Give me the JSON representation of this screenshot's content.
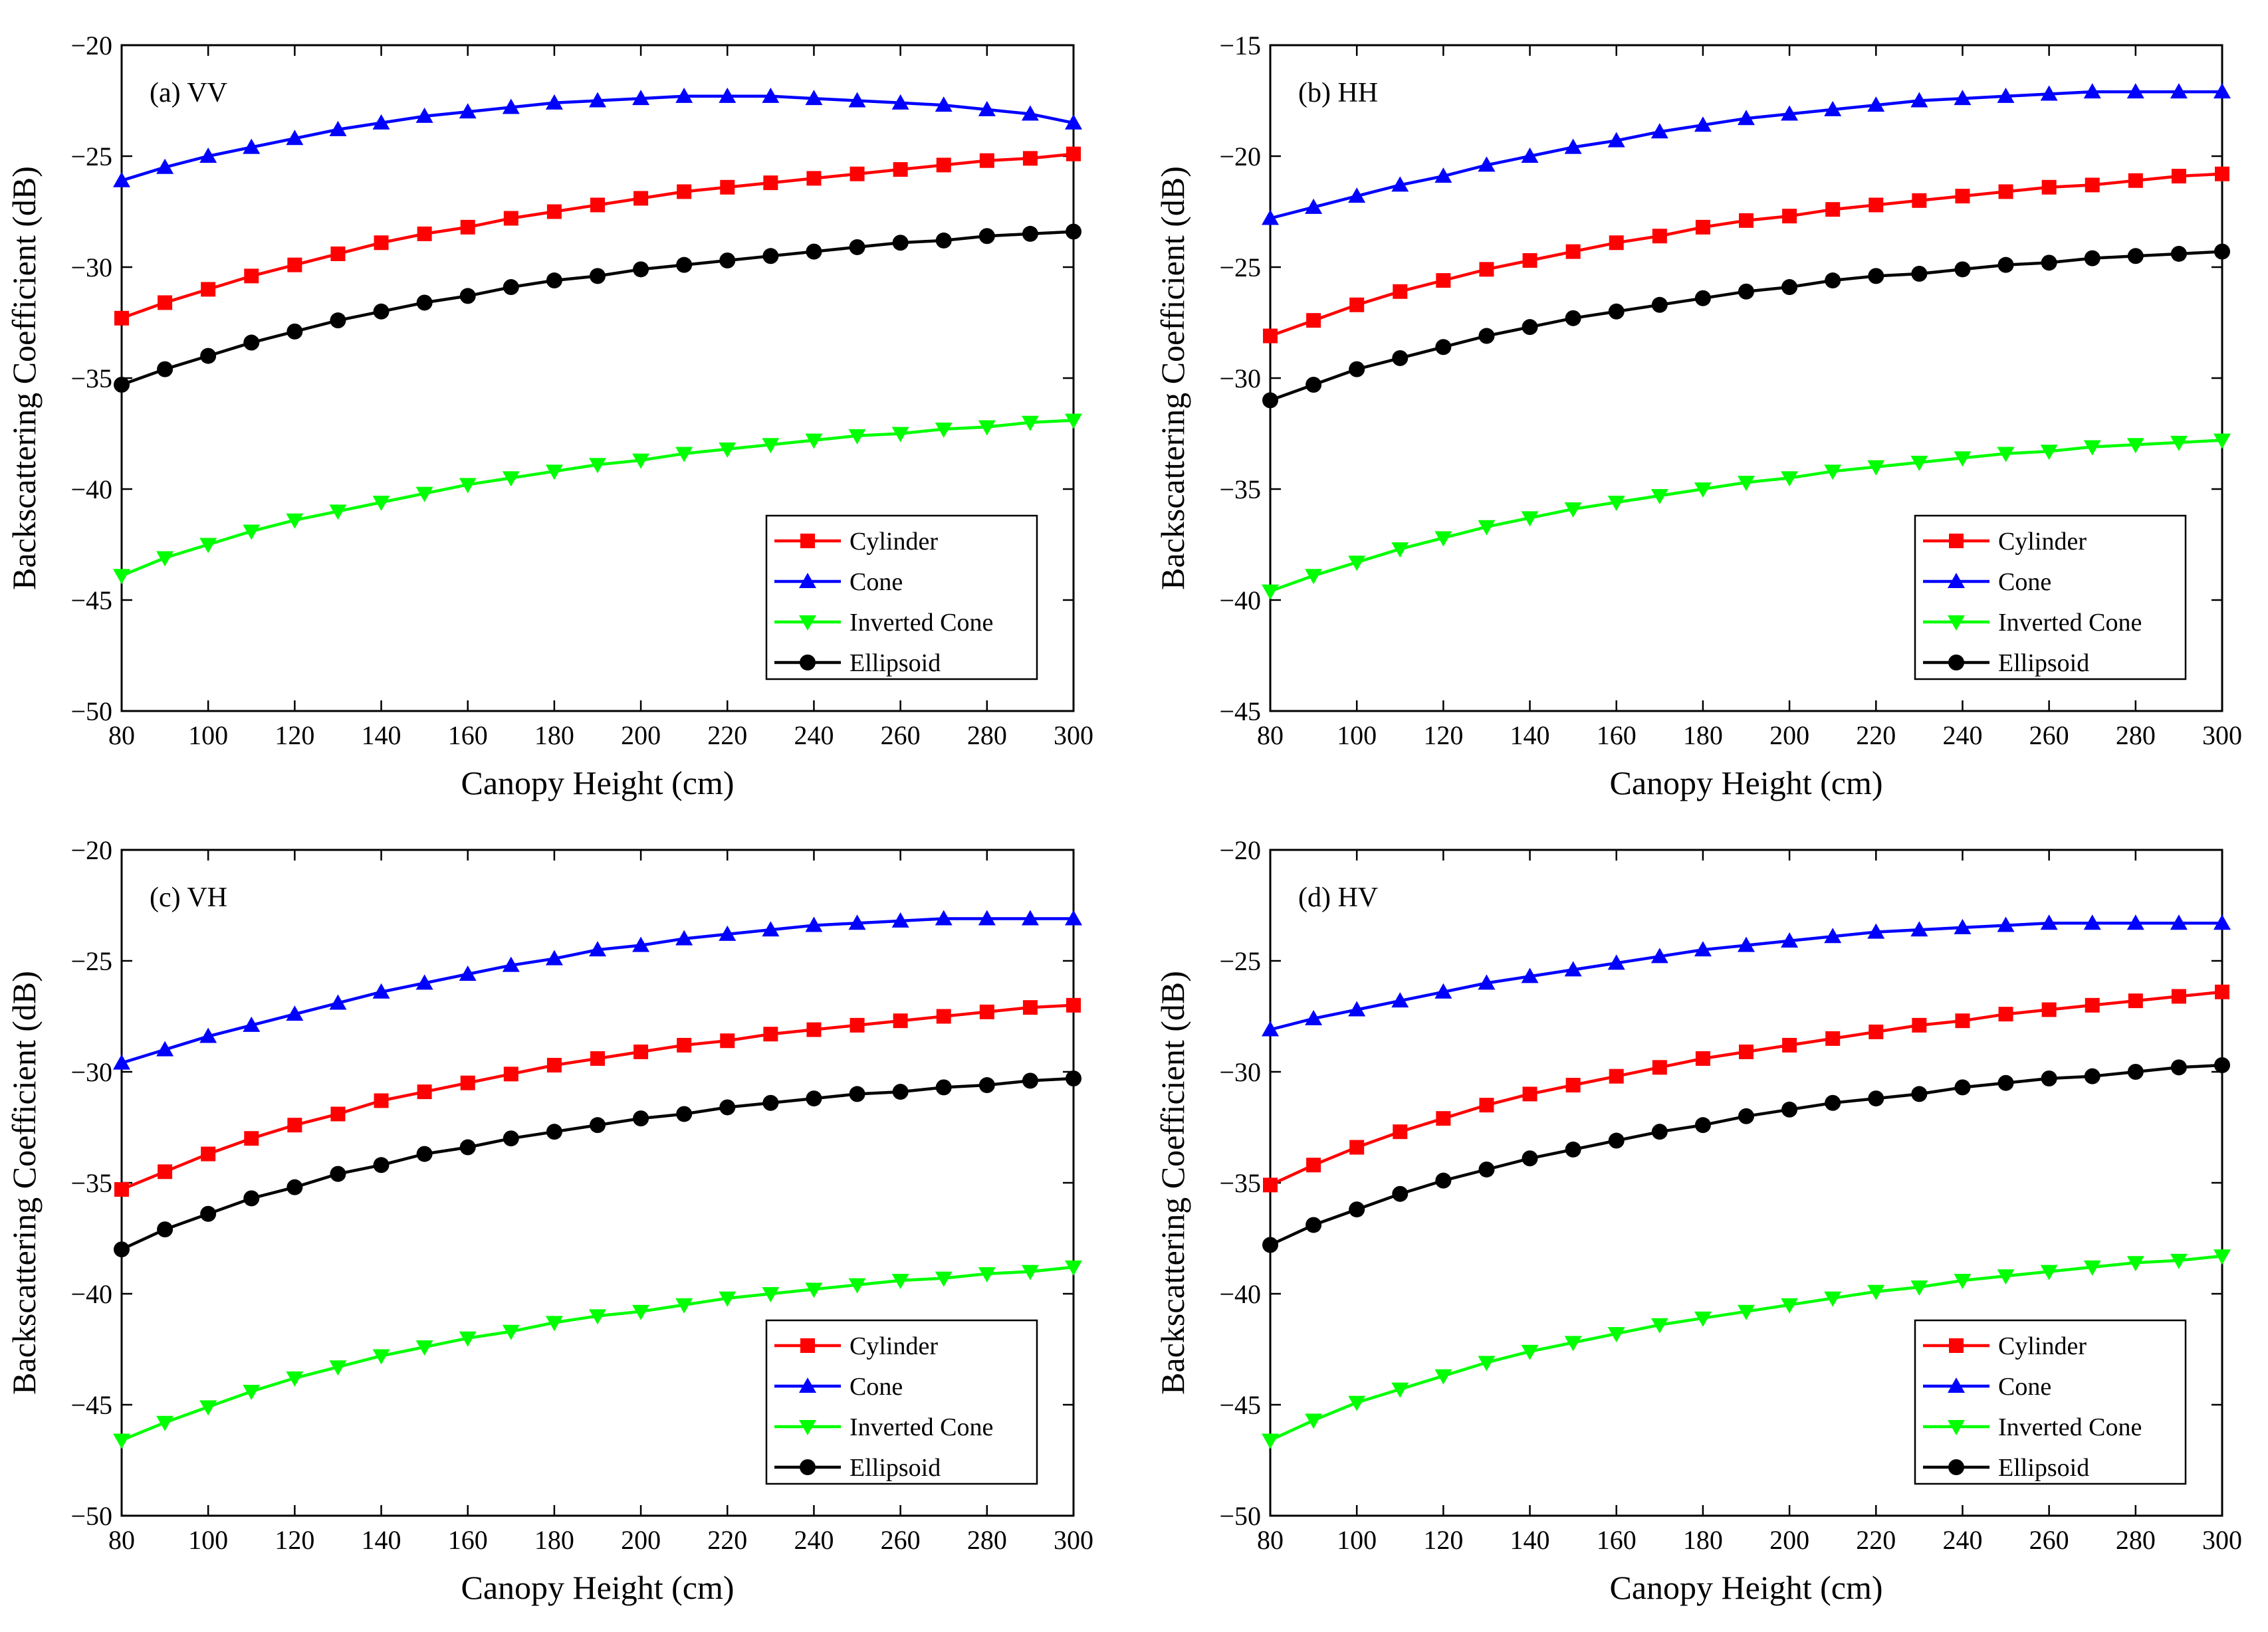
{
  "figure": {
    "xlabel": "Canopy Height (cm)",
    "ylabel": "Backscattering Coefficient (dB)"
  },
  "chart_data": [
    {
      "type": "line",
      "panel_label": "(a) VV",
      "xlabel": "Canopy Height (cm)",
      "ylabel": "Backscattering Coefficient (dB)",
      "xlim": [
        80,
        300
      ],
      "ylim": [
        -50,
        -20
      ],
      "xticks": [
        80,
        100,
        120,
        140,
        160,
        180,
        200,
        220,
        240,
        260,
        280,
        300
      ],
      "yticks": [
        -50,
        -45,
        -40,
        -35,
        -30,
        -25,
        -20
      ],
      "ytick_labels": [
        "−50",
        "−45",
        "−40",
        "−35",
        "−30",
        "−25",
        "−20"
      ],
      "legend_position": "bottom-right",
      "x": [
        80,
        90,
        100,
        110,
        120,
        130,
        140,
        150,
        160,
        170,
        180,
        190,
        200,
        210,
        220,
        230,
        240,
        250,
        260,
        270,
        280,
        290,
        300
      ],
      "series": [
        {
          "name": "Cylinder",
          "color": "#ff0000",
          "marker": "square",
          "values": [
            -32.3,
            -31.6,
            -31.0,
            -30.4,
            -29.9,
            -29.4,
            -28.9,
            -28.5,
            -28.2,
            -27.8,
            -27.5,
            -27.2,
            -26.9,
            -26.6,
            -26.4,
            -26.2,
            -26.0,
            -25.8,
            -25.6,
            -25.4,
            -25.2,
            -25.1,
            -24.9
          ]
        },
        {
          "name": "Cone",
          "color": "#0000ff",
          "marker": "triangle-up",
          "values": [
            -26.1,
            -25.5,
            -25.0,
            -24.6,
            -24.2,
            -23.8,
            -23.5,
            -23.2,
            -23.0,
            -22.8,
            -22.6,
            -22.5,
            -22.4,
            -22.3,
            -22.3,
            -22.3,
            -22.4,
            -22.5,
            -22.6,
            -22.7,
            -22.9,
            -23.1,
            -23.5
          ]
        },
        {
          "name": "Inverted Cone",
          "color": "#00ff00",
          "marker": "triangle-down",
          "values": [
            -43.9,
            -43.1,
            -42.5,
            -41.9,
            -41.4,
            -41.0,
            -40.6,
            -40.2,
            -39.8,
            -39.5,
            -39.2,
            -38.9,
            -38.7,
            -38.4,
            -38.2,
            -38.0,
            -37.8,
            -37.6,
            -37.5,
            -37.3,
            -37.2,
            -37.0,
            -36.9
          ]
        },
        {
          "name": "Ellipsoid",
          "color": "#000000",
          "marker": "circle",
          "values": [
            -35.3,
            -34.6,
            -34.0,
            -33.4,
            -32.9,
            -32.4,
            -32.0,
            -31.6,
            -31.3,
            -30.9,
            -30.6,
            -30.4,
            -30.1,
            -29.9,
            -29.7,
            -29.5,
            -29.3,
            -29.1,
            -28.9,
            -28.8,
            -28.6,
            -28.5,
            -28.4
          ]
        }
      ]
    },
    {
      "type": "line",
      "panel_label": "(b) HH",
      "xlabel": "Canopy Height (cm)",
      "ylabel": "Backscattering Coefficient (dB)",
      "xlim": [
        80,
        300
      ],
      "ylim": [
        -45,
        -15
      ],
      "xticks": [
        80,
        100,
        120,
        140,
        160,
        180,
        200,
        220,
        240,
        260,
        280,
        300
      ],
      "yticks": [
        -45,
        -40,
        -35,
        -30,
        -25,
        -20,
        -15
      ],
      "ytick_labels": [
        "−45",
        "−40",
        "−35",
        "−30",
        "−25",
        "−20",
        "−15"
      ],
      "legend_position": "bottom-right",
      "x": [
        80,
        90,
        100,
        110,
        120,
        130,
        140,
        150,
        160,
        170,
        180,
        190,
        200,
        210,
        220,
        230,
        240,
        250,
        260,
        270,
        280,
        290,
        300
      ],
      "series": [
        {
          "name": "Cylinder",
          "color": "#ff0000",
          "marker": "square",
          "values": [
            -28.1,
            -27.4,
            -26.7,
            -26.1,
            -25.6,
            -25.1,
            -24.7,
            -24.3,
            -23.9,
            -23.6,
            -23.2,
            -22.9,
            -22.7,
            -22.4,
            -22.2,
            -22.0,
            -21.8,
            -21.6,
            -21.4,
            -21.3,
            -21.1,
            -20.9,
            -20.8
          ]
        },
        {
          "name": "Cone",
          "color": "#0000ff",
          "marker": "triangle-up",
          "values": [
            -22.8,
            -22.3,
            -21.8,
            -21.3,
            -20.9,
            -20.4,
            -20.0,
            -19.6,
            -19.3,
            -18.9,
            -18.6,
            -18.3,
            -18.1,
            -17.9,
            -17.7,
            -17.5,
            -17.4,
            -17.3,
            -17.2,
            -17.1,
            -17.1,
            -17.1,
            -17.1
          ]
        },
        {
          "name": "Inverted Cone",
          "color": "#00ff00",
          "marker": "triangle-down",
          "values": [
            -39.6,
            -38.9,
            -38.3,
            -37.7,
            -37.2,
            -36.7,
            -36.3,
            -35.9,
            -35.6,
            -35.3,
            -35.0,
            -34.7,
            -34.5,
            -34.2,
            -34.0,
            -33.8,
            -33.6,
            -33.4,
            -33.3,
            -33.1,
            -33.0,
            -32.9,
            -32.8
          ]
        },
        {
          "name": "Ellipsoid",
          "color": "#000000",
          "marker": "circle",
          "values": [
            -31.0,
            -30.3,
            -29.6,
            -29.1,
            -28.6,
            -28.1,
            -27.7,
            -27.3,
            -27.0,
            -26.7,
            -26.4,
            -26.1,
            -25.9,
            -25.6,
            -25.4,
            -25.3,
            -25.1,
            -24.9,
            -24.8,
            -24.6,
            -24.5,
            -24.4,
            -24.3
          ]
        }
      ]
    },
    {
      "type": "line",
      "panel_label": "(c) VH",
      "xlabel": "Canopy Height (cm)",
      "ylabel": "Backscattering Coefficient (dB)",
      "xlim": [
        80,
        300
      ],
      "ylim": [
        -50,
        -20
      ],
      "xticks": [
        80,
        100,
        120,
        140,
        160,
        180,
        200,
        220,
        240,
        260,
        280,
        300
      ],
      "yticks": [
        -50,
        -45,
        -40,
        -35,
        -30,
        -25,
        -20
      ],
      "ytick_labels": [
        "−50",
        "−45",
        "−40",
        "−35",
        "−30",
        "−25",
        "−20"
      ],
      "legend_position": "bottom-right",
      "x": [
        80,
        90,
        100,
        110,
        120,
        130,
        140,
        150,
        160,
        170,
        180,
        190,
        200,
        210,
        220,
        230,
        240,
        250,
        260,
        270,
        280,
        290,
        300
      ],
      "series": [
        {
          "name": "Cylinder",
          "color": "#ff0000",
          "marker": "square",
          "values": [
            -35.3,
            -34.5,
            -33.7,
            -33.0,
            -32.4,
            -31.9,
            -31.3,
            -30.9,
            -30.5,
            -30.1,
            -29.7,
            -29.4,
            -29.1,
            -28.8,
            -28.6,
            -28.3,
            -28.1,
            -27.9,
            -27.7,
            -27.5,
            -27.3,
            -27.1,
            -27.0
          ]
        },
        {
          "name": "Cone",
          "color": "#0000ff",
          "marker": "triangle-up",
          "values": [
            -29.6,
            -29.0,
            -28.4,
            -27.9,
            -27.4,
            -26.9,
            -26.4,
            -26.0,
            -25.6,
            -25.2,
            -24.9,
            -24.5,
            -24.3,
            -24.0,
            -23.8,
            -23.6,
            -23.4,
            -23.3,
            -23.2,
            -23.1,
            -23.1,
            -23.1,
            -23.1
          ]
        },
        {
          "name": "Inverted Cone",
          "color": "#00ff00",
          "marker": "triangle-down",
          "values": [
            -46.6,
            -45.8,
            -45.1,
            -44.4,
            -43.8,
            -43.3,
            -42.8,
            -42.4,
            -42.0,
            -41.7,
            -41.3,
            -41.0,
            -40.8,
            -40.5,
            -40.2,
            -40.0,
            -39.8,
            -39.6,
            -39.4,
            -39.3,
            -39.1,
            -39.0,
            -38.8
          ]
        },
        {
          "name": "Ellipsoid",
          "color": "#000000",
          "marker": "circle",
          "values": [
            -38.0,
            -37.1,
            -36.4,
            -35.7,
            -35.2,
            -34.6,
            -34.2,
            -33.7,
            -33.4,
            -33.0,
            -32.7,
            -32.4,
            -32.1,
            -31.9,
            -31.6,
            -31.4,
            -31.2,
            -31.0,
            -30.9,
            -30.7,
            -30.6,
            -30.4,
            -30.3
          ]
        }
      ]
    },
    {
      "type": "line",
      "panel_label": "(d) HV",
      "xlabel": "Canopy Height (cm)",
      "ylabel": "Backscattering Coefficient (dB)",
      "xlim": [
        80,
        300
      ],
      "ylim": [
        -50,
        -20
      ],
      "xticks": [
        80,
        100,
        120,
        140,
        160,
        180,
        200,
        220,
        240,
        260,
        280,
        300
      ],
      "yticks": [
        -50,
        -45,
        -40,
        -35,
        -30,
        -25,
        -20
      ],
      "ytick_labels": [
        "−50",
        "−45",
        "−40",
        "−35",
        "−30",
        "−25",
        "−20"
      ],
      "legend_position": "bottom-right",
      "x": [
        80,
        90,
        100,
        110,
        120,
        130,
        140,
        150,
        160,
        170,
        180,
        190,
        200,
        210,
        220,
        230,
        240,
        250,
        260,
        270,
        280,
        290,
        300
      ],
      "series": [
        {
          "name": "Cylinder",
          "color": "#ff0000",
          "marker": "square",
          "values": [
            -35.1,
            -34.2,
            -33.4,
            -32.7,
            -32.1,
            -31.5,
            -31.0,
            -30.6,
            -30.2,
            -29.8,
            -29.4,
            -29.1,
            -28.8,
            -28.5,
            -28.2,
            -27.9,
            -27.7,
            -27.4,
            -27.2,
            -27.0,
            -26.8,
            -26.6,
            -26.4
          ]
        },
        {
          "name": "Cone",
          "color": "#0000ff",
          "marker": "triangle-up",
          "values": [
            -28.1,
            -27.6,
            -27.2,
            -26.8,
            -26.4,
            -26.0,
            -25.7,
            -25.4,
            -25.1,
            -24.8,
            -24.5,
            -24.3,
            -24.1,
            -23.9,
            -23.7,
            -23.6,
            -23.5,
            -23.4,
            -23.3,
            -23.3,
            -23.3,
            -23.3,
            -23.3
          ]
        },
        {
          "name": "Inverted Cone",
          "color": "#00ff00",
          "marker": "triangle-down",
          "values": [
            -46.6,
            -45.7,
            -44.9,
            -44.3,
            -43.7,
            -43.1,
            -42.6,
            -42.2,
            -41.8,
            -41.4,
            -41.1,
            -40.8,
            -40.5,
            -40.2,
            -39.9,
            -39.7,
            -39.4,
            -39.2,
            -39.0,
            -38.8,
            -38.6,
            -38.5,
            -38.3
          ]
        },
        {
          "name": "Ellipsoid",
          "color": "#000000",
          "marker": "circle",
          "values": [
            -37.8,
            -36.9,
            -36.2,
            -35.5,
            -34.9,
            -34.4,
            -33.9,
            -33.5,
            -33.1,
            -32.7,
            -32.4,
            -32.0,
            -31.7,
            -31.4,
            -31.2,
            -31.0,
            -30.7,
            -30.5,
            -30.3,
            -30.2,
            -30.0,
            -29.8,
            -29.7
          ]
        }
      ]
    }
  ]
}
